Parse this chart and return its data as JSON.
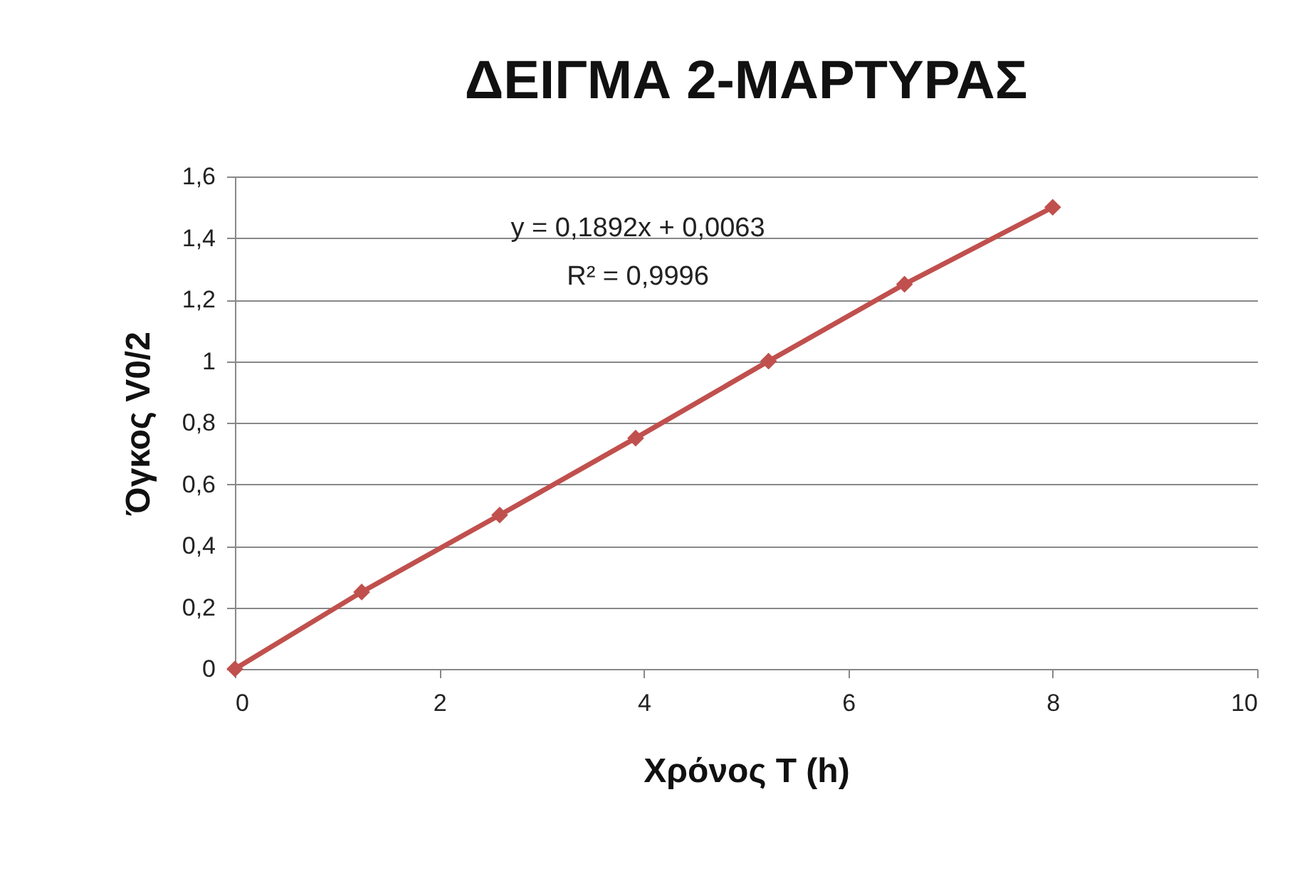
{
  "chart_data": {
    "type": "line",
    "title": "ΔΕΙΓΜΑ 2-ΜΑΡΤΥΡΑΣ",
    "xlabel": "Χρόνος T (h)",
    "ylabel": "Όγκος V0/2",
    "x": [
      0,
      1.24,
      2.59,
      3.92,
      5.22,
      6.55,
      8.0
    ],
    "series": [
      {
        "color": "#c0504d",
        "values": [
          0,
          0.25,
          0.5,
          0.75,
          1.0,
          1.25,
          1.5
        ]
      }
    ],
    "xlim": [
      0,
      10
    ],
    "xticks": [
      0,
      2,
      4,
      6,
      8,
      10
    ],
    "ylim": [
      0,
      1.6
    ],
    "yticks": [
      0,
      {
        "value": 0.2,
        "label": "0,2"
      },
      {
        "value": 0.4,
        "label": "0,4"
      },
      {
        "value": 0.6,
        "label": "0,6"
      },
      {
        "value": 0.8,
        "label": "0,8"
      },
      1,
      {
        "value": 1.2,
        "label": "1,2"
      },
      {
        "value": 1.4,
        "label": "1,4"
      },
      {
        "value": 1.6,
        "label": "1,6"
      }
    ],
    "grid": "y",
    "marker": "diamond",
    "line_style": "solid",
    "annotations": [
      "y = 0,1892x + 0,0063",
      "R² = 0,9996"
    ]
  }
}
